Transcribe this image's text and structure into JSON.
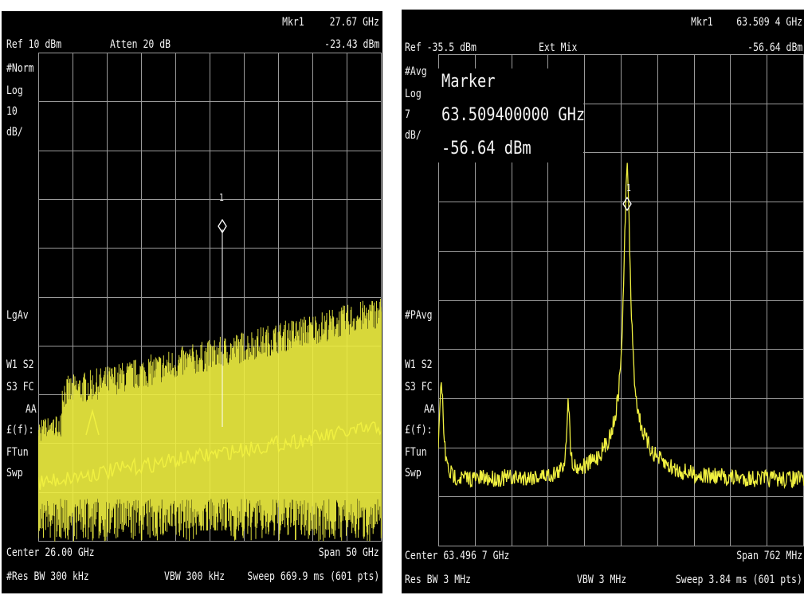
{
  "left": {
    "marker_readout_label": "Mkr1",
    "marker_freq": "27.67 GHz",
    "ref_level": "Ref 10 dBm",
    "atten": "Atten 20 dB",
    "marker_amp": "-23.43 dBm",
    "side_labels": [
      "#Norm",
      "Log",
      "10",
      "dB/",
      "LgAv",
      "W1  S2",
      "S3  FC",
      "AA",
      "£(f):",
      "FTun",
      "Swp"
    ],
    "marker_number": "1",
    "center": "Center 26.00 GHz",
    "span": "Span 50 GHz",
    "res_bw": "#Res BW 300 kHz",
    "vbw": "VBW 300 kHz",
    "sweep": "Sweep 669.9 ms (601 pts)"
  },
  "right": {
    "marker_readout_label": "Mkr1",
    "marker_freq": "63.509 4 GHz",
    "ref_level": "Ref -35.5 dBm",
    "mixer": "Ext Mix",
    "marker_amp": "-56.64 dBm",
    "side_labels": [
      "#Avg",
      "Log",
      "7",
      "dB/",
      "#PAvg",
      "W1  S2",
      "S3  FC",
      "AA",
      "£(f):",
      "FTun",
      "Swp"
    ],
    "marker_box": {
      "title": "Marker",
      "freq": "63.509400000 GHz",
      "amp": "-56.64 dBm"
    },
    "marker_number": "1",
    "center": "Center 63.496 7 GHz",
    "span": "Span 762 MHz",
    "res_bw": "Res BW 3 MHz",
    "vbw": "VBW 3 MHz",
    "sweep": "Sweep 3.84 ms (601 pts)"
  },
  "colors": {
    "trace": "#f0f040",
    "grid": "#9a9a9a",
    "background": "#000000",
    "text": "#f2f2f2"
  }
}
